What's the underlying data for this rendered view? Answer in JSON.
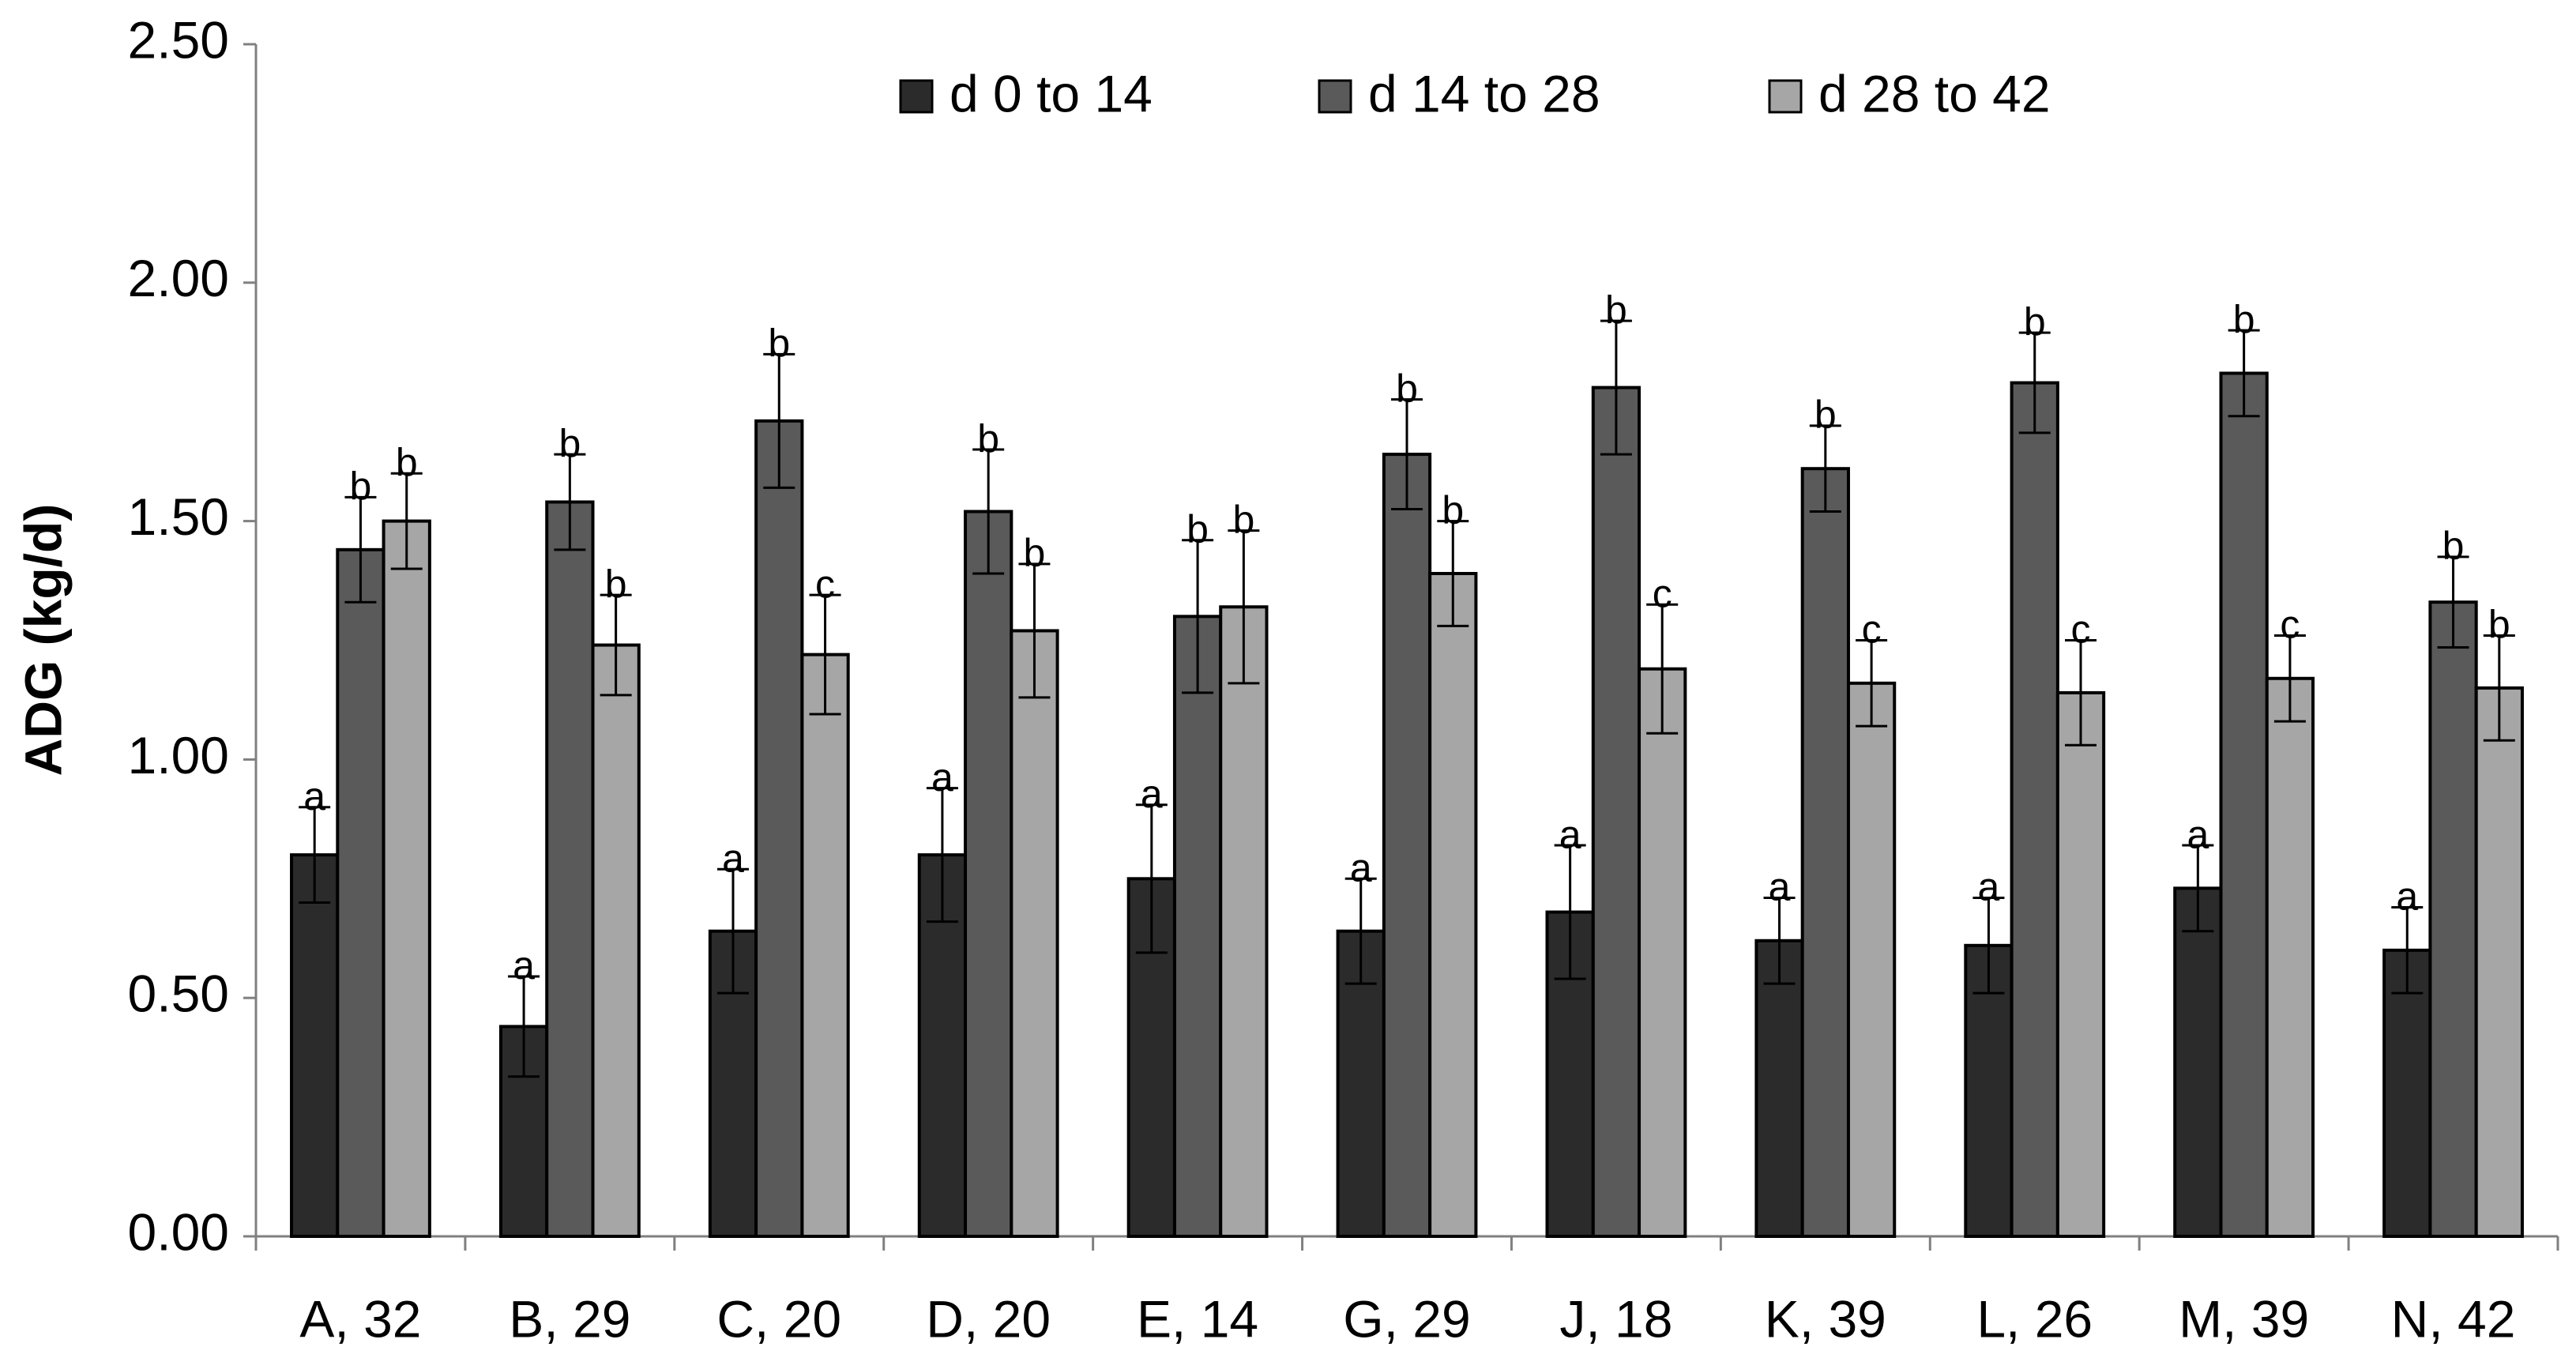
{
  "chart_data": {
    "type": "bar",
    "y_label": "ADG (kg/d)",
    "categories": [
      "A, 32",
      "B, 29",
      "C, 20",
      "D, 20",
      "E, 14",
      "G, 29",
      "J, 18",
      "K, 39",
      "L, 26",
      "M, 39",
      "N, 42"
    ],
    "series": [
      {
        "name": "d 0 to 14",
        "color": "#2b2b2b",
        "values": [
          0.8,
          0.44,
          0.64,
          0.8,
          0.75,
          0.64,
          0.68,
          0.62,
          0.61,
          0.73,
          0.6
        ],
        "errors": [
          0.1,
          0.105,
          0.13,
          0.14,
          0.155,
          0.11,
          0.14,
          0.09,
          0.1,
          0.09,
          0.09
        ],
        "letters": [
          "a",
          "a",
          "a",
          "a",
          "a",
          "a",
          "a",
          "a",
          "a",
          "a",
          "a"
        ]
      },
      {
        "name": "d 14 to 28",
        "color": "#5a5a5a",
        "values": [
          1.44,
          1.54,
          1.71,
          1.52,
          1.3,
          1.64,
          1.78,
          1.61,
          1.79,
          1.81,
          1.33
        ],
        "errors": [
          0.11,
          0.1,
          0.14,
          0.13,
          0.16,
          0.115,
          0.14,
          0.09,
          0.105,
          0.09,
          0.095
        ],
        "letters": [
          "b",
          "b",
          "b",
          "b",
          "b",
          "b",
          "b",
          "b",
          "b",
          "b",
          "b"
        ]
      },
      {
        "name": "d 28 to 42",
        "color": "#a6a6a6",
        "values": [
          1.5,
          1.24,
          1.22,
          1.27,
          1.32,
          1.39,
          1.19,
          1.16,
          1.14,
          1.17,
          1.15
        ],
        "errors": [
          0.1,
          0.105,
          0.125,
          0.14,
          0.16,
          0.11,
          0.135,
          0.09,
          0.11,
          0.09,
          0.11
        ],
        "letters": [
          "b",
          "b",
          "c",
          "b",
          "b",
          "b",
          "c",
          "c",
          "c",
          "c",
          "b"
        ]
      }
    ],
    "ylim": [
      0,
      2.5
    ],
    "yticks": [
      {
        "value": 0,
        "label": "0.00"
      },
      {
        "value": 0.5,
        "label": "0.50"
      },
      {
        "value": 1,
        "label": "1.00"
      },
      {
        "value": 1.5,
        "label": "1.50"
      },
      {
        "value": 2,
        "label": "2.00"
      },
      {
        "value": 2.5,
        "label": "2.50"
      }
    ],
    "grid": false,
    "legend": "top"
  }
}
